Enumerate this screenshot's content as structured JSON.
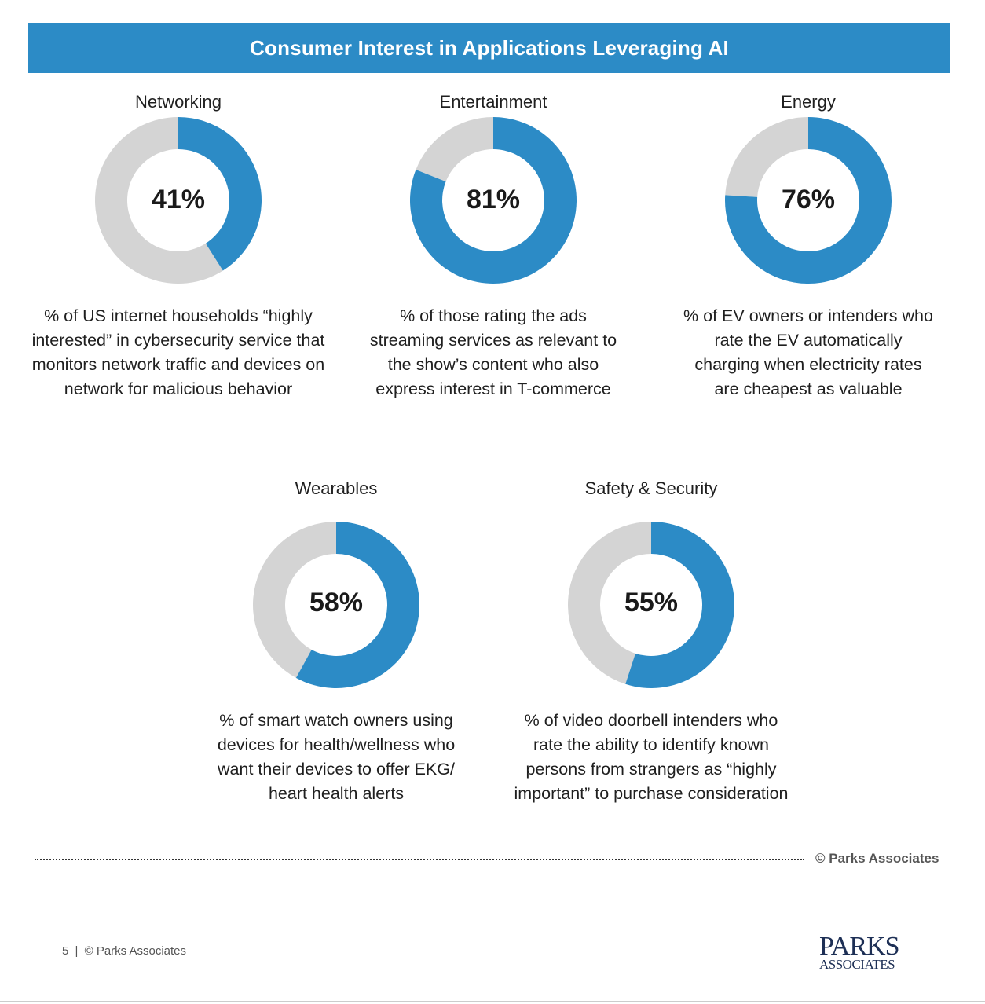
{
  "title": "Consumer Interest in Applications Leveraging AI",
  "colors": {
    "accent": "#2c8bc6",
    "remainder": "#d4d4d4"
  },
  "chart_data": [
    {
      "type": "pie",
      "category": "Networking",
      "value": 41,
      "label": "41%",
      "description": "% of US internet households “highly interested” in cybersecurity service that monitors network traffic and devices on network for malicious behavior"
    },
    {
      "type": "pie",
      "category": "Entertainment",
      "value": 81,
      "label": "81%",
      "description": "% of those rating the ads streaming services as relevant to the show’s content who also express interest in T-commerce"
    },
    {
      "type": "pie",
      "category": "Energy",
      "value": 76,
      "label": "76%",
      "description": "% of EV owners or intenders who rate the EV automatically charging when electricity rates are cheapest as valuable"
    },
    {
      "type": "pie",
      "category": "Wearables",
      "value": 58,
      "label": "58%",
      "description": "% of smart watch owners using devices for health/wellness who want their devices to offer EKG/ heart health alerts"
    },
    {
      "type": "pie",
      "category": "Safety & Security",
      "value": 55,
      "label": "55%",
      "description": "% of video doorbell intenders who rate the ability to identify known persons from strangers as “highly important” to purchase consideration"
    }
  ],
  "source_note": "© Parks Associates",
  "footer": {
    "page_number": "5",
    "separator": "|",
    "text": "© Parks Associates"
  },
  "logo": {
    "line1": "PARKS",
    "line2": "ASSOCIATES"
  }
}
